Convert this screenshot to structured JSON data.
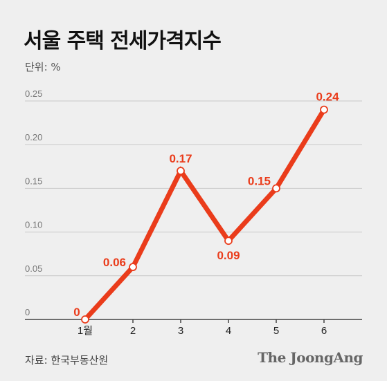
{
  "title": "서울 주택 전세가격지수",
  "unit_label": "단위: %",
  "source": "자료: 한국부동산원",
  "brand": "The JoongAng",
  "colors": {
    "line": "#ea3c1b",
    "grid": "#c8c8c8",
    "axis": "#444444",
    "marker_fill": "#ffffff"
  },
  "chart_data": {
    "type": "line",
    "title": "서울 주택 전세가격지수",
    "ylabel": "단위: %",
    "xlabel": "",
    "categories": [
      "1월",
      "2",
      "3",
      "4",
      "5",
      "6"
    ],
    "series": [
      {
        "values": [
          0,
          0.06,
          0.17,
          0.09,
          0.15,
          0.24
        ]
      }
    ],
    "data_labels": [
      "0",
      "0.06",
      "0.17",
      "0.09",
      "0.15",
      "0.24"
    ],
    "yticks": [
      "0",
      "0.05",
      "0.10",
      "0.15",
      "0.20",
      "0.25"
    ],
    "ylim": [
      0,
      0.25
    ],
    "grid": true,
    "legend": "none"
  }
}
